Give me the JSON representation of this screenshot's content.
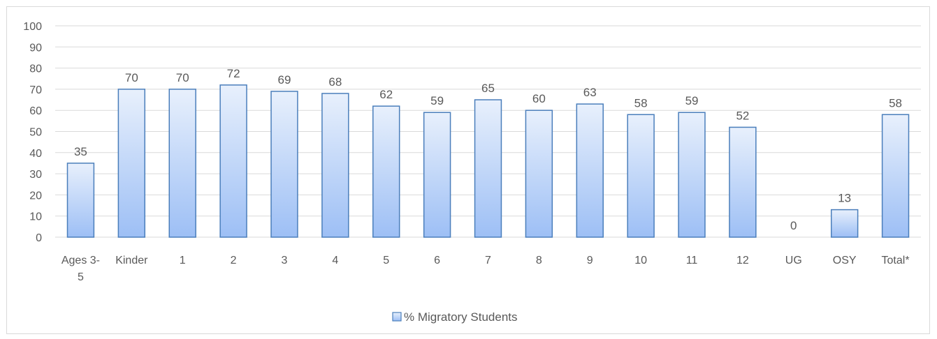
{
  "chart_data": {
    "type": "bar",
    "title": "",
    "xlabel": "",
    "ylabel": "",
    "ylim": [
      0,
      100
    ],
    "yticks": [
      0,
      10,
      20,
      30,
      40,
      50,
      60,
      70,
      80,
      90,
      100
    ],
    "categories": [
      "Ages 3-5",
      "Kinder",
      "1",
      "2",
      "3",
      "4",
      "5",
      "6",
      "7",
      "8",
      "9",
      "10",
      "11",
      "12",
      "UG",
      "OSY",
      "Total*"
    ],
    "category_lines": [
      [
        "Ages 3-",
        "5"
      ],
      [
        "Kinder"
      ],
      [
        "1"
      ],
      [
        "2"
      ],
      [
        "3"
      ],
      [
        "4"
      ],
      [
        "5"
      ],
      [
        "6"
      ],
      [
        "7"
      ],
      [
        "8"
      ],
      [
        "9"
      ],
      [
        "10"
      ],
      [
        "11"
      ],
      [
        "12"
      ],
      [
        "UG"
      ],
      [
        "OSY"
      ],
      [
        "Total*"
      ]
    ],
    "series": [
      {
        "name": "% Migratory Students",
        "values": [
          35,
          70,
          70,
          72,
          69,
          68,
          62,
          59,
          65,
          60,
          63,
          58,
          59,
          52,
          0,
          13,
          58
        ]
      }
    ],
    "grid": true,
    "legend_position": "bottom",
    "colors": {
      "bar_top": "#e8f0fc",
      "bar_bottom": "#9dbff5",
      "bar_stroke": "#4a7ebb",
      "grid": "#d9d9d9",
      "text": "#595959"
    }
  }
}
